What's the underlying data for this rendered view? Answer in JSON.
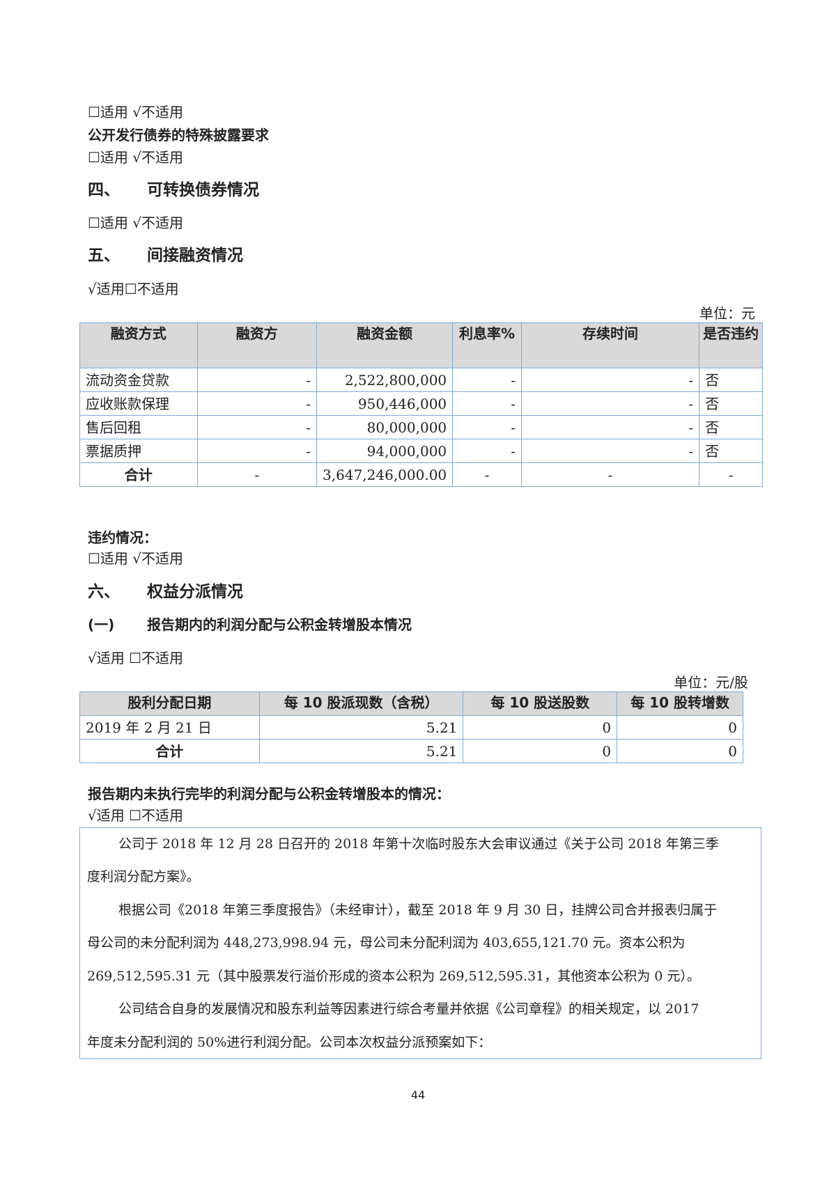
{
  "lines": {
    "l1": "☐适用 √不适用",
    "l2": "公开发行债券的特殊披露要求",
    "l3": "☐适用 √不适用",
    "s4": "四、",
    "s4t": "可转换债券情况",
    "l4": "☐适用 √不适用",
    "s5": "五、",
    "s5t": "间接融资情况",
    "l5": "√适用☐不适用",
    "unit1": "单位：元",
    "default": "违约情况：",
    "l6": "☐适用 √不适用",
    "s6": "六、",
    "s6t": "权益分派情况",
    "s61": "(一)",
    "s61t": "报告期内的利润分配与公积金转增股本情况",
    "l7": "√适用 ☐不适用",
    "unit2": "单位：元/股",
    "pending": "报告期内未执行完毕的利润分配与公积金转增股本的情况：",
    "l8": "√适用 ☐不适用"
  },
  "financing": {
    "headers": [
      "融资方式",
      "融资方",
      "融资金额",
      "利息率%",
      "存续时间",
      "是否违约"
    ],
    "rows": [
      [
        "流动资金贷款",
        "-",
        "2,522,800,000",
        "-",
        "-",
        "否"
      ],
      [
        "应收账款保理",
        "-",
        "950,446,000",
        "-",
        "-",
        "否"
      ],
      [
        "售后回租",
        "-",
        "80,000,000",
        "-",
        "-",
        "否"
      ],
      [
        "票据质押",
        "-",
        "94,000,000",
        "-",
        "-",
        "否"
      ]
    ],
    "total": [
      "合计",
      "-",
      "3,647,246,000.00",
      "-",
      "-",
      "-"
    ]
  },
  "dividend": {
    "headers": [
      "股利分配日期",
      "每 10 股派现数（含税）",
      "每 10 股送股数",
      "每 10 股转增数"
    ],
    "rows": [
      [
        "2019 年 2 月 21 日",
        "5.21",
        "0",
        "0"
      ]
    ],
    "total": [
      "合计",
      "5.21",
      "0",
      "0"
    ]
  },
  "box": {
    "p1a": "公司于 2018 年 12 月 28 日召开的 2018 年第十次临时股东大会审议通过《关于公司 2018 年第三季",
    "p1b": "度利润分配方案》。",
    "p2a": "根据公司《2018 年第三季度报告》（未经审计），截至 2018 年 9 月 30 日，挂牌公司合并报表归属于",
    "p2b": "母公司的未分配利润为 448,273,998.94 元，母公司未分配利润为 403,655,121.70 元。资本公积为",
    "p2c": "269,512,595.31 元（其中股票发行溢价形成的资本公积为 269,512,595.31，其他资本公积为 0 元）。",
    "p3a": "公司结合自身的发展情况和股东利益等因素进行综合考量并依据《公司章程》的相关规定，以 2017",
    "p3b": "年度未分配利润的 50%进行利润分配。公司本次权益分派预案如下："
  },
  "page_number": "44"
}
